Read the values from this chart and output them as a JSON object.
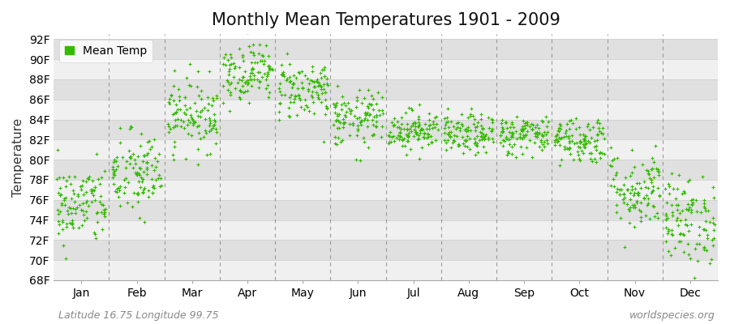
{
  "title": "Monthly Mean Temperatures 1901 - 2009",
  "ylabel": "Temperature",
  "xlabel_labels": [
    "Jan",
    "Feb",
    "Mar",
    "Apr",
    "May",
    "Jun",
    "Jul",
    "Aug",
    "Sep",
    "Oct",
    "Nov",
    "Dec"
  ],
  "ytick_labels": [
    "68F",
    "70F",
    "72F",
    "74F",
    "76F",
    "78F",
    "80F",
    "82F",
    "84F",
    "86F",
    "88F",
    "90F",
    "92F"
  ],
  "ytick_values": [
    68,
    70,
    72,
    74,
    76,
    78,
    80,
    82,
    84,
    86,
    88,
    90,
    92
  ],
  "ylim": [
    68,
    92.5
  ],
  "dot_color": "#33bb00",
  "bg_color": "#ffffff",
  "plot_bg_color_light": "#f0f0f0",
  "plot_bg_color_dark": "#e0e0e0",
  "legend_label": "Mean Temp",
  "footer_left": "Latitude 16.75 Longitude 99.75",
  "footer_right": "worldspecies.org",
  "title_fontsize": 15,
  "axis_fontsize": 10,
  "footer_fontsize": 9,
  "n_years": 109,
  "seed": 42,
  "monthly_means": [
    75.5,
    78.5,
    84.5,
    88.8,
    87.0,
    84.0,
    83.0,
    82.5,
    82.5,
    82.0,
    77.0,
    74.0
  ],
  "monthly_stds": [
    2.0,
    2.2,
    1.8,
    1.5,
    1.5,
    1.4,
    1.0,
    1.0,
    1.0,
    1.2,
    2.0,
    2.2
  ]
}
